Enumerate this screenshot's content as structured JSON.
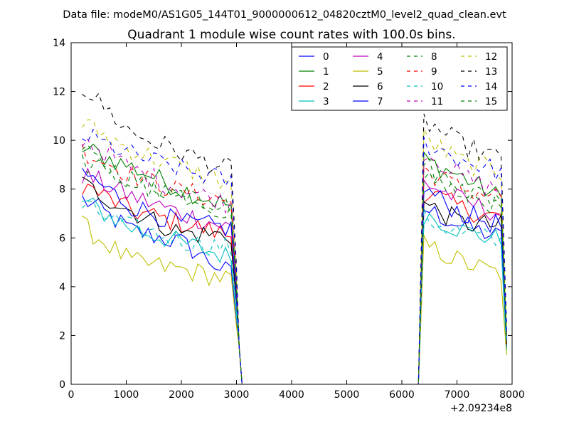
{
  "suptitle": "Data file: modeM0/AS1G05_144T01_9000000612_04820cztM0_level2_quad_clean.evt",
  "chart_data": {
    "type": "line",
    "title": "Quadrant 1 module wise count rates with 100.0s bins.",
    "xlabel": "",
    "ylabel": "",
    "xlim": [
      0,
      8000
    ],
    "ylim": [
      0,
      14
    ],
    "x_ticks": [
      0,
      1000,
      2000,
      3000,
      4000,
      5000,
      6000,
      7000,
      8000
    ],
    "x_tick_labels": [
      "0",
      "1000",
      "2000",
      "3000",
      "4000",
      "5000",
      "6000",
      "7000",
      "8000"
    ],
    "y_ticks": [
      0,
      2,
      4,
      6,
      8,
      10,
      12,
      14
    ],
    "y_tick_labels": [
      "0",
      "2",
      "4",
      "6",
      "8",
      "10",
      "12",
      "14"
    ],
    "x_offset_label": "+2.09234e8",
    "grid": false,
    "legend_placement": "top-right",
    "legend_columns": 4,
    "segments": [
      {
        "x_start": 200,
        "x_end": 2900,
        "step": 100
      },
      {
        "x_start": 6400,
        "x_end": 7800,
        "step": 100
      }
    ],
    "zero_gap": {
      "x_start": 3100,
      "x_end": 6300
    },
    "series": [
      {
        "name": "0",
        "color": "#0000ff",
        "dashed": false,
        "level_a": [
          7.6,
          6.3,
          5.8,
          4.5
        ],
        "level_b": [
          7.2,
          6.5,
          6.0
        ],
        "end_value": 1.6
      },
      {
        "name": "1",
        "color": "#008000",
        "dashed": false,
        "level_a": [
          9.7,
          8.9,
          8.0,
          7.3
        ],
        "level_b": [
          9.2,
          8.5,
          7.6
        ],
        "end_value": 1.4
      },
      {
        "name": "2",
        "color": "#ff0000",
        "dashed": false,
        "level_a": [
          8.2,
          7.1,
          6.6,
          6.1
        ],
        "level_b": [
          7.9,
          7.2,
          6.8
        ],
        "end_value": 1.5
      },
      {
        "name": "3",
        "color": "#00bfbf",
        "dashed": false,
        "level_a": [
          7.5,
          6.4,
          5.8,
          5.2
        ],
        "level_b": [
          7.0,
          6.3,
          5.9
        ],
        "end_value": 1.3
      },
      {
        "name": "4",
        "color": "#bf00bf",
        "dashed": false,
        "level_a": [
          8.6,
          7.7,
          7.0,
          6.4
        ],
        "level_b": [
          8.3,
          7.5,
          7.0
        ],
        "end_value": 1.5
      },
      {
        "name": "5",
        "color": "#bfbf00",
        "dashed": false,
        "level_a": [
          6.5,
          5.0,
          4.7,
          4.3
        ],
        "level_b": [
          5.7,
          5.0,
          4.5
        ],
        "end_value": 1.2
      },
      {
        "name": "6",
        "color": "#000000",
        "dashed": false,
        "level_a": [
          8.2,
          7.1,
          6.2,
          6.1
        ],
        "level_b": [
          7.4,
          6.6,
          6.5
        ],
        "end_value": 1.6
      },
      {
        "name": "7",
        "color": "#0000ff",
        "dashed": false,
        "level_a": [
          8.7,
          7.3,
          6.6,
          6.4
        ],
        "level_b": [
          8.0,
          7.0,
          6.5
        ],
        "end_value": 1.8
      },
      {
        "name": "8",
        "color": "#008000",
        "dashed": true,
        "level_a": [
          9.5,
          8.4,
          7.8,
          7.3
        ],
        "level_b": [
          9.0,
          8.0,
          7.5
        ],
        "end_value": 1.9
      },
      {
        "name": "9",
        "color": "#ff0000",
        "dashed": true,
        "level_a": [
          9.6,
          8.6,
          7.9,
          7.5
        ],
        "level_b": [
          8.8,
          8.0,
          7.7
        ],
        "end_value": 2.0
      },
      {
        "name": "10",
        "color": "#00bfbf",
        "dashed": true,
        "level_a": [
          7.3,
          6.4,
          5.9,
          5.6
        ],
        "level_b": [
          6.8,
          6.2,
          5.8
        ],
        "end_value": 1.4
      },
      {
        "name": "11",
        "color": "#bf00bf",
        "dashed": true,
        "level_a": [
          10.1,
          8.8,
          8.0,
          7.4
        ],
        "level_b": [
          9.6,
          8.5,
          7.9
        ],
        "end_value": 2.1
      },
      {
        "name": "12",
        "color": "#bfbf00",
        "dashed": true,
        "level_a": [
          10.7,
          9.6,
          8.9,
          8.2
        ],
        "level_b": [
          10.1,
          9.1,
          8.7
        ],
        "end_value": 2.2
      },
      {
        "name": "13",
        "color": "#000000",
        "dashed": true,
        "level_a": [
          12.2,
          10.3,
          9.5,
          8.8
        ],
        "level_b": [
          10.8,
          9.8,
          9.2
        ],
        "end_value": 2.4
      },
      {
        "name": "14",
        "color": "#0000ff",
        "dashed": true,
        "level_a": [
          10.2,
          9.4,
          8.8,
          8.3
        ],
        "level_b": [
          9.9,
          9.2,
          8.7
        ],
        "end_value": 2.2
      },
      {
        "name": "15",
        "color": "#008000",
        "dashed": true,
        "level_a": [
          9.1,
          8.2,
          7.6,
          7.1
        ],
        "level_b": [
          8.6,
          7.8,
          7.3
        ],
        "end_value": 1.8
      }
    ]
  }
}
